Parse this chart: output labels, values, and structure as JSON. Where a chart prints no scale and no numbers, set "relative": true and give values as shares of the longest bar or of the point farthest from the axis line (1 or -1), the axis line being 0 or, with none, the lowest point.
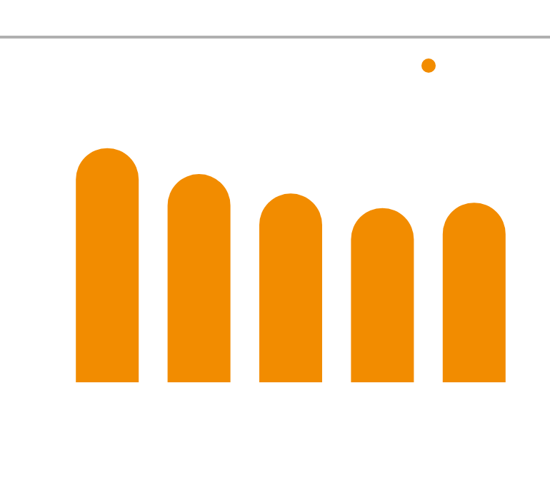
{
  "chart_data": {
    "type": "bar",
    "relative": true,
    "categories": [
      null,
      null,
      null,
      null,
      null
    ],
    "values": [
      1,
      0.889,
      0.806,
      0.744,
      0.767
    ],
    "color": "#f28c00"
  }
}
